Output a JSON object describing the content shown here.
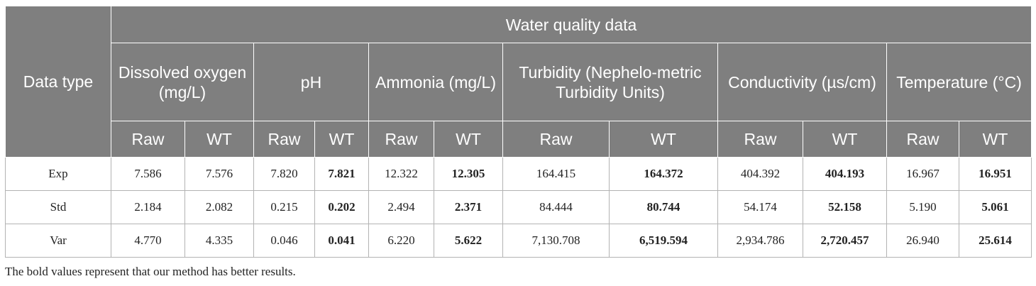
{
  "table": {
    "row_header": "Data type",
    "group_header": "Water quality data",
    "parameters": [
      "Dissolved oxygen (mg/L)",
      "pH",
      "Ammonia (mg/L)",
      "Turbidity (Nephelo-metric Turbidity Units)",
      "Conductivity (µs/cm)",
      "Temperature (°C)"
    ],
    "sub_raw": "Raw",
    "sub_wt": "WT",
    "rows": [
      {
        "label": "Exp",
        "values": [
          "7.586",
          "7.576",
          "7.820",
          "7.821",
          "12.322",
          "12.305",
          "164.415",
          "164.372",
          "404.392",
          "404.193",
          "16.967",
          "16.951"
        ]
      },
      {
        "label": "Std",
        "values": [
          "2.184",
          "2.082",
          "0.215",
          "0.202",
          "2.494",
          "2.371",
          "84.444",
          "80.744",
          "54.174",
          "52.158",
          "5.190",
          "5.061"
        ]
      },
      {
        "label": "Var",
        "values": [
          "4.770",
          "4.335",
          "0.046",
          "0.041",
          "6.220",
          "5.622",
          "7,130.708",
          "6,519.594",
          "2,934.786",
          "2,720.457",
          "26.940",
          "25.614"
        ]
      }
    ],
    "bold_cells": [
      [
        3,
        5,
        7,
        9,
        11
      ],
      [
        3,
        5,
        7,
        9,
        11
      ],
      [
        3,
        5,
        7,
        9,
        11
      ]
    ]
  },
  "footnote": "The bold values represent that our method has better results."
}
